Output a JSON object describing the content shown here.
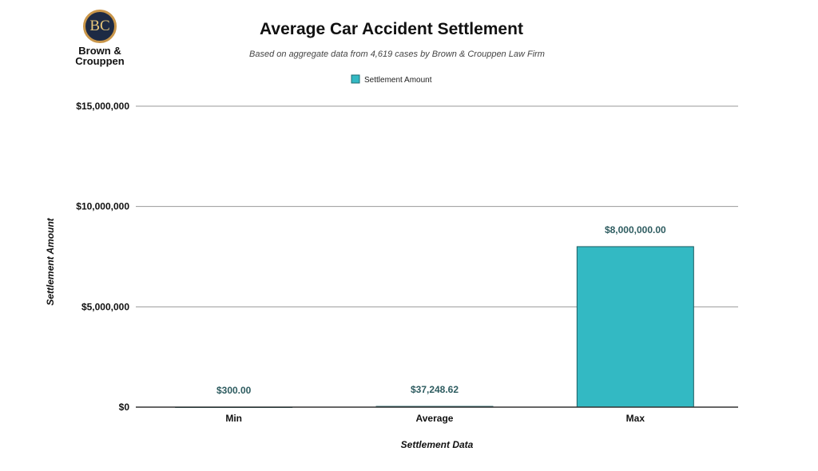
{
  "logo": {
    "monogram": "BC",
    "name_line1": "Brown &",
    "name_line2": "Crouppen"
  },
  "chart_data": {
    "type": "bar",
    "title": "Average Car Accident Settlement",
    "subtitle": "Based on aggregate data from 4,619 cases by Brown & Crouppen Law Firm",
    "xlabel": "Settlement Data",
    "ylabel": "Settlement Amount",
    "categories": [
      "Min",
      "Average",
      "Max"
    ],
    "series": [
      {
        "name": "Settlement Amount",
        "values": [
          300,
          37248.62,
          8000000
        ],
        "color": "#33b9c3"
      }
    ],
    "data_labels": [
      "$300.00",
      "$37,248.62",
      "$8,000,000.00"
    ],
    "ylim": [
      0,
      15000000
    ],
    "yticks": [
      0,
      5000000,
      10000000,
      15000000
    ],
    "ytick_labels": [
      "$0",
      "$5,000,000",
      "$10,000,000",
      "$15,000,000"
    ],
    "grid": true,
    "legend_position": "top"
  }
}
